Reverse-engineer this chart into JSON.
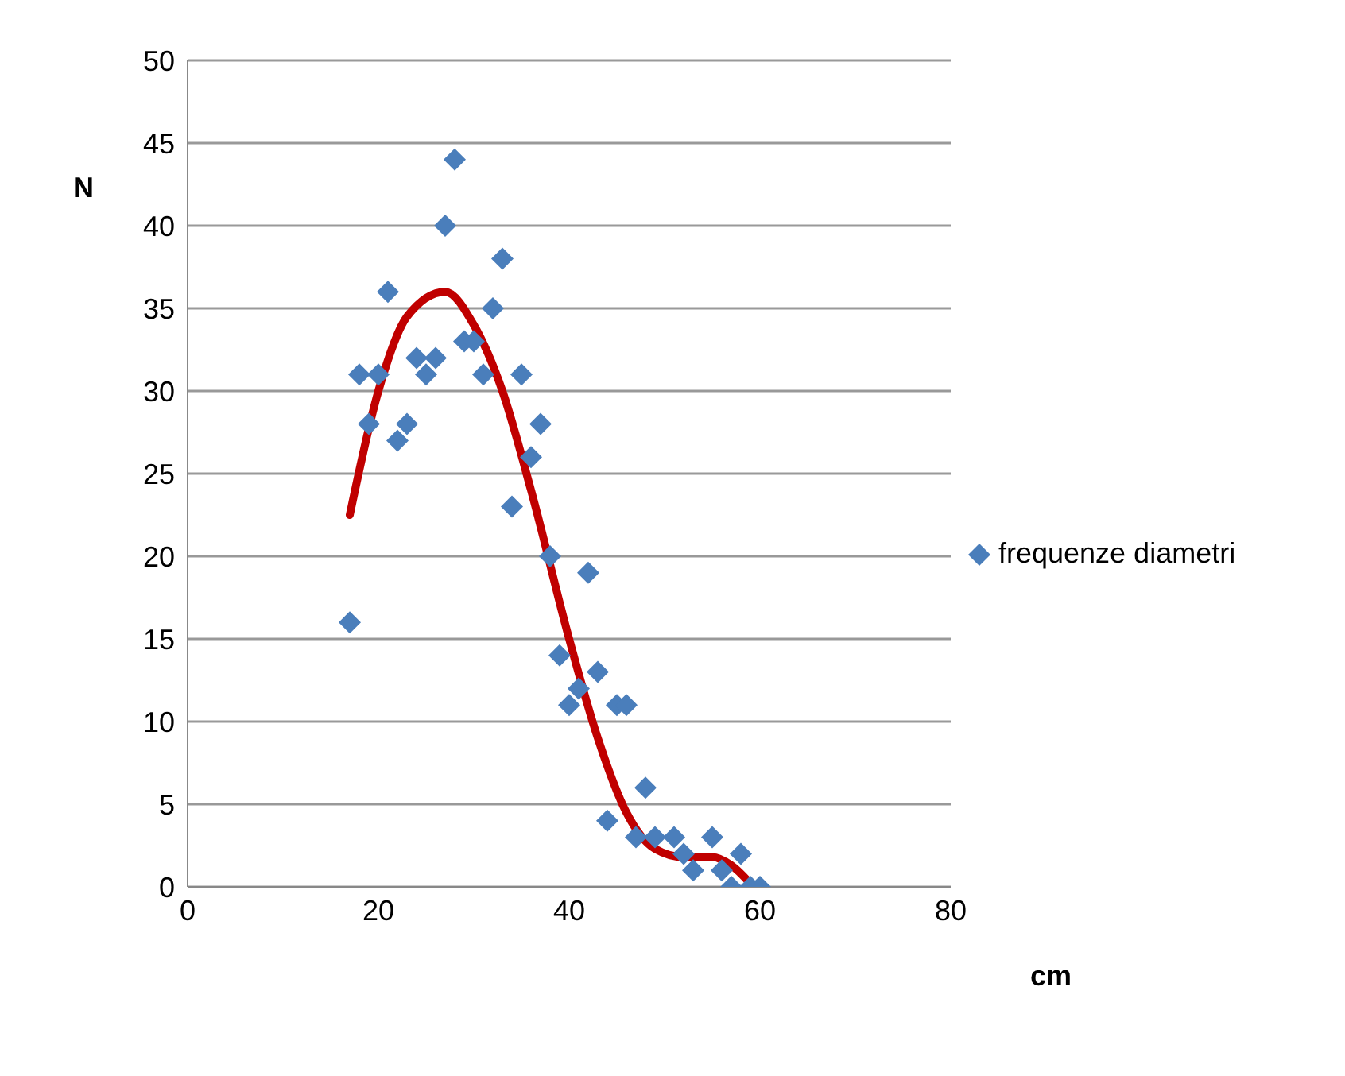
{
  "chart_data": {
    "type": "scatter",
    "xlabel": "cm",
    "ylabel": "N",
    "xlim": [
      0,
      80
    ],
    "xticks": [
      0,
      20,
      40,
      60,
      80
    ],
    "ylim": [
      0,
      50
    ],
    "yticks": [
      0,
      5,
      10,
      15,
      20,
      25,
      30,
      35,
      40,
      45,
      50
    ],
    "grid": "y",
    "legend": "right",
    "marker": "diamond",
    "series": [
      {
        "name": "frequenze diametri",
        "color": "#4a7ebb",
        "x": [
          17,
          18,
          19,
          20,
          21,
          22,
          23,
          24,
          25,
          26,
          27,
          28,
          29,
          30,
          31,
          32,
          33,
          34,
          35,
          36,
          37,
          38,
          39,
          40,
          41,
          42,
          43,
          44,
          45,
          46,
          47,
          48,
          49,
          51,
          52,
          53,
          55,
          56,
          57,
          58,
          59,
          60
        ],
        "values": [
          16,
          31,
          28,
          31,
          36,
          27,
          28,
          32,
          31,
          32,
          40,
          44,
          33,
          33,
          31,
          35,
          38,
          23,
          31,
          26,
          28,
          20,
          14,
          11,
          12,
          19,
          13,
          4,
          11,
          11,
          3,
          6,
          3,
          3,
          2,
          1,
          3,
          1,
          0,
          2,
          0,
          0
        ]
      },
      {
        "type": "line",
        "color": "#c00000",
        "marker": "none",
        "x": [
          17,
          20,
          23,
          27,
          30,
          33,
          36,
          40,
          43,
          46,
          49,
          52,
          55,
          57,
          59
        ],
        "values": [
          22.5,
          30,
          34.5,
          36,
          34,
          30,
          24,
          15,
          9,
          4.5,
          2.3,
          1.8,
          1.8,
          1.3,
          0.2
        ]
      }
    ]
  }
}
